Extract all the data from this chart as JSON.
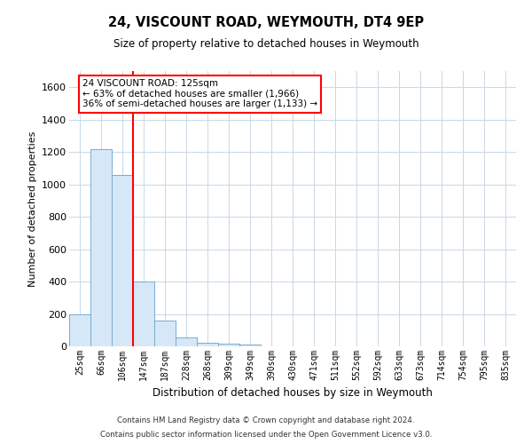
{
  "title": "24, VISCOUNT ROAD, WEYMOUTH, DT4 9EP",
  "subtitle": "Size of property relative to detached houses in Weymouth",
  "xlabel": "Distribution of detached houses by size in Weymouth",
  "ylabel": "Number of detached properties",
  "categories": [
    "25sqm",
    "66sqm",
    "106sqm",
    "147sqm",
    "187sqm",
    "228sqm",
    "268sqm",
    "309sqm",
    "349sqm",
    "390sqm",
    "430sqm",
    "471sqm",
    "511sqm",
    "552sqm",
    "592sqm",
    "633sqm",
    "673sqm",
    "714sqm",
    "754sqm",
    "795sqm",
    "835sqm"
  ],
  "values": [
    200,
    1220,
    1060,
    400,
    160,
    55,
    20,
    15,
    10,
    0,
    0,
    0,
    0,
    0,
    0,
    0,
    0,
    0,
    0,
    0,
    0
  ],
  "bar_color": "#d6e8f7",
  "bar_edge_color": "#7aabcf",
  "redline_x": 2.5,
  "ylim": [
    0,
    1700
  ],
  "yticks": [
    0,
    200,
    400,
    600,
    800,
    1000,
    1200,
    1400,
    1600
  ],
  "annotation_title": "24 VISCOUNT ROAD: 125sqm",
  "annotation_line1": "← 63% of detached houses are smaller (1,966)",
  "annotation_line2": "36% of semi-detached houses are larger (1,133) →",
  "footer1": "Contains HM Land Registry data © Crown copyright and database right 2024.",
  "footer2": "Contains public sector information licensed under the Open Government Licence v3.0.",
  "background_color": "#ffffff",
  "grid_color": "#c8d8e8"
}
